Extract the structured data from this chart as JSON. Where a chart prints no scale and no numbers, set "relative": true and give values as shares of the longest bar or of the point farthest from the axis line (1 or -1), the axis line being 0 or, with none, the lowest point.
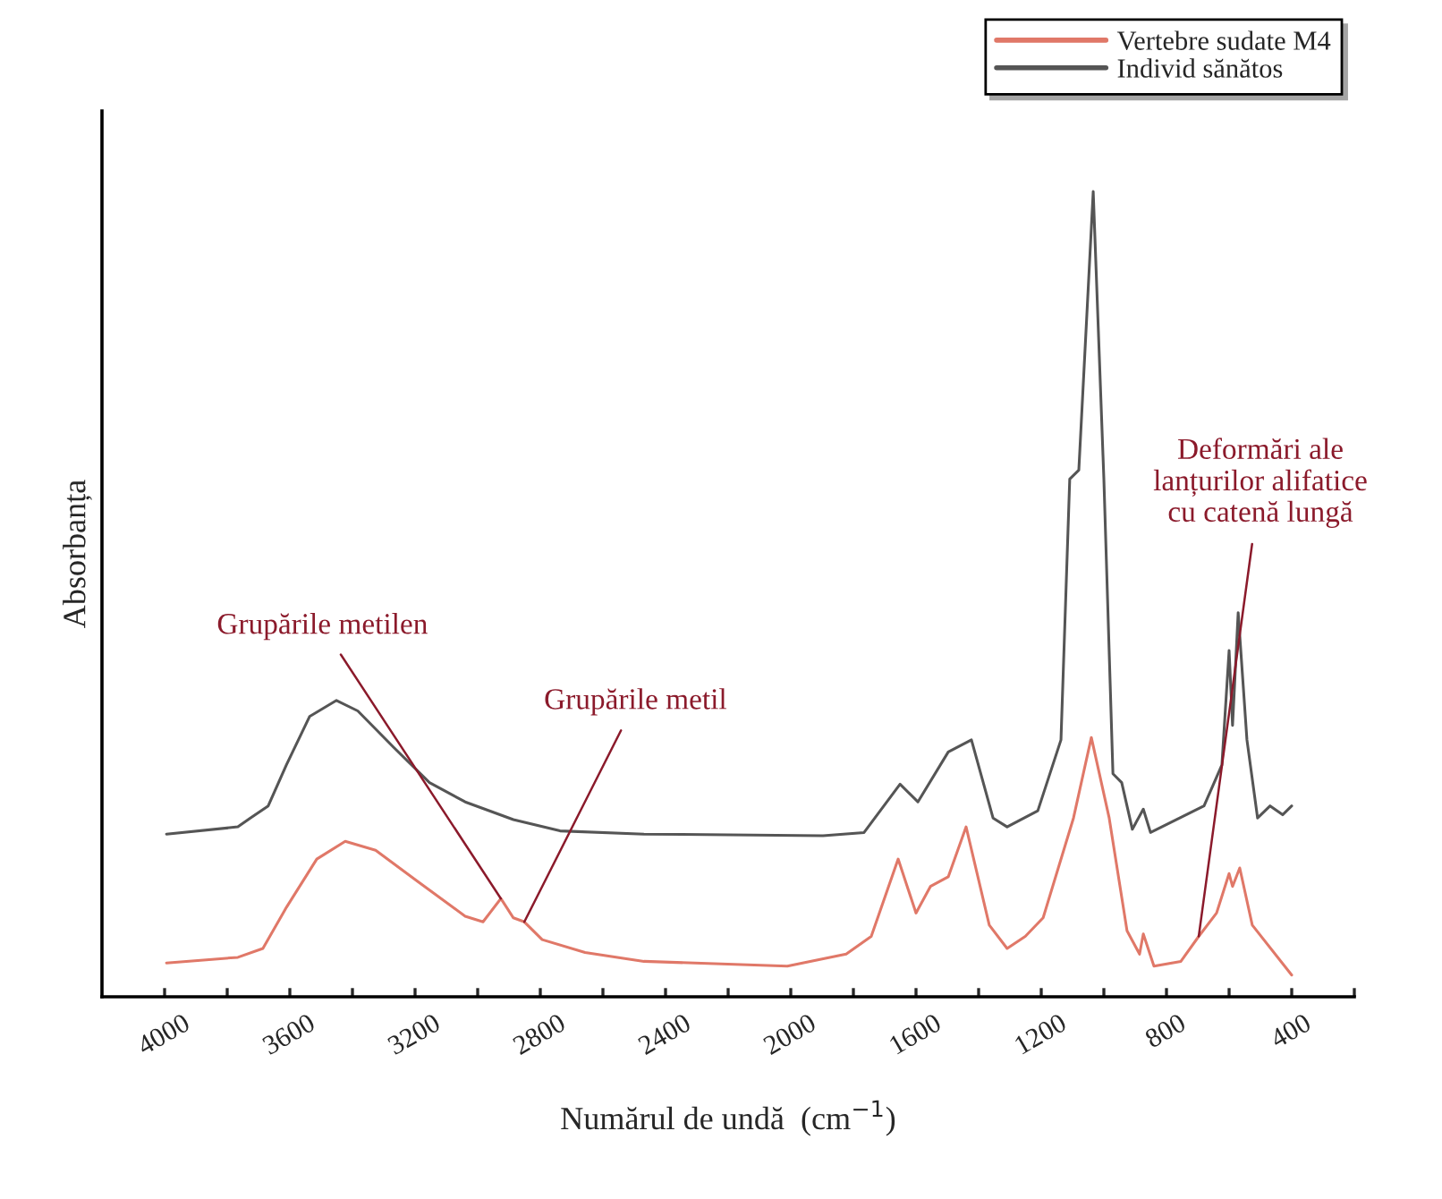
{
  "chart_data": {
    "type": "line",
    "relative": true,
    "xlabel": "Numărul de undă  (cm$^{−1}$)",
    "ylabel": "Absorbanța",
    "xlim": [
      4200,
      200
    ],
    "xticks": [
      {
        "value": 4000,
        "label": "4000"
      },
      {
        "value": 3800,
        "label": null
      },
      {
        "value": 3600,
        "label": "3600"
      },
      {
        "value": 3400,
        "label": null
      },
      {
        "value": 3200,
        "label": "3200"
      },
      {
        "value": 3000,
        "label": null
      },
      {
        "value": 2800,
        "label": "2800"
      },
      {
        "value": 2600,
        "label": null
      },
      {
        "value": 2400,
        "label": "2400"
      },
      {
        "value": 2200,
        "label": null
      },
      {
        "value": 2000,
        "label": "2000"
      },
      {
        "value": 1800,
        "label": null
      },
      {
        "value": 1600,
        "label": "1600"
      },
      {
        "value": 1400,
        "label": null
      },
      {
        "value": 1200,
        "label": "1200"
      },
      {
        "value": 1000,
        "label": null
      },
      {
        "value": 800,
        "label": "800"
      },
      {
        "value": 600,
        "label": null
      },
      {
        "value": 400,
        "label": "400"
      },
      {
        "value": 200,
        "label": null
      }
    ],
    "legend": "top right",
    "grid": false,
    "series": [
      {
        "name": "Vertebre sudate M4",
        "color": "#e07868",
        "x": [
          3994,
          3766,
          3686,
          3611,
          3514,
          3423,
          3326,
          3194,
          3040,
          2983,
          2926,
          2886,
          2851,
          2794,
          2657,
          2469,
          2011,
          1823,
          1743,
          1657,
          1600,
          1554,
          1497,
          1440,
          1366,
          1309,
          1251,
          1194,
          1097,
          1040,
          983,
          926,
          886,
          874,
          840,
          754,
          697,
          640,
          600,
          589,
          566,
          526,
          400
        ],
        "values": [
          0.042,
          0.049,
          0.06,
          0.111,
          0.171,
          0.193,
          0.182,
          0.144,
          0.1,
          0.093,
          0.122,
          0.098,
          0.093,
          0.071,
          0.055,
          0.044,
          0.038,
          0.053,
          0.075,
          0.171,
          0.104,
          0.137,
          0.149,
          0.211,
          0.089,
          0.06,
          0.075,
          0.098,
          0.222,
          0.322,
          0.222,
          0.082,
          0.053,
          0.078,
          0.038,
          0.044,
          0.075,
          0.104,
          0.153,
          0.137,
          0.16,
          0.089,
          0.027
        ]
      },
      {
        "name": "Individ sănătos",
        "color": "#555555",
        "x": [
          3994,
          3766,
          3726,
          3669,
          3611,
          3537,
          3451,
          3383,
          3269,
          3154,
          3040,
          2886,
          2737,
          2469,
          1897,
          1766,
          1651,
          1594,
          1497,
          1423,
          1354,
          1309,
          1211,
          1137,
          1109,
          1080,
          1034,
          1000,
          971,
          943,
          909,
          874,
          851,
          680,
          623,
          600,
          589,
          571,
          543,
          509,
          469,
          429,
          400
        ],
        "values": [
          0.202,
          0.211,
          0.222,
          0.237,
          0.288,
          0.348,
          0.368,
          0.355,
          0.31,
          0.266,
          0.242,
          0.22,
          0.206,
          0.202,
          0.2,
          0.204,
          0.264,
          0.242,
          0.304,
          0.319,
          0.222,
          0.211,
          0.231,
          0.319,
          0.643,
          0.654,
          1.0,
          0.643,
          0.277,
          0.266,
          0.208,
          0.233,
          0.204,
          0.237,
          0.288,
          0.43,
          0.337,
          0.477,
          0.319,
          0.222,
          0.237,
          0.226,
          0.237
        ]
      }
    ],
    "annotations": [
      {
        "text": "Grupările metilen",
        "x": 2926,
        "y": 0.122
      },
      {
        "text": "Grupările metil",
        "x": 2851,
        "y": 0.093
      },
      {
        "text": "Deformări ale\nlanțurilor alifatice\ncu catenă lungă",
        "x": 697,
        "y": 0.075
      }
    ]
  }
}
